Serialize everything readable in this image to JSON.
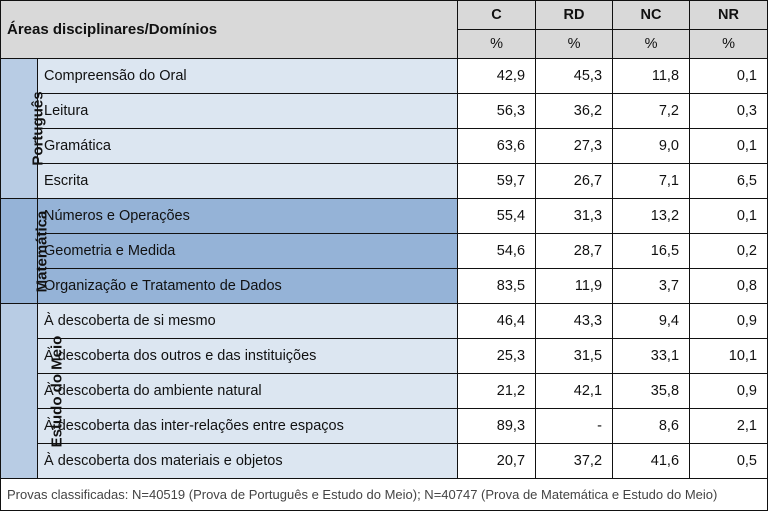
{
  "header": {
    "area_label": "Áreas disciplinares/Domínios",
    "columns": [
      "C",
      "RD",
      "NC",
      "NR"
    ],
    "unit": "%"
  },
  "groups": [
    {
      "subject": "Português",
      "rows": [
        {
          "domain": "Compreensão do Oral",
          "values": [
            "42,9",
            "45,3",
            "11,8",
            "0,1"
          ]
        },
        {
          "domain": "Leitura",
          "values": [
            "56,3",
            "36,2",
            "7,2",
            "0,3"
          ]
        },
        {
          "domain": "Gramática",
          "values": [
            "63,6",
            "27,3",
            "9,0",
            "0,1"
          ]
        },
        {
          "domain": "Escrita",
          "values": [
            "59,7",
            "26,7",
            "7,1",
            "6,5"
          ]
        }
      ]
    },
    {
      "subject": "Matemática",
      "rows": [
        {
          "domain": "Números e Operações",
          "values": [
            "55,4",
            "31,3",
            "13,2",
            "0,1"
          ]
        },
        {
          "domain": "Geometria e Medida",
          "values": [
            "54,6",
            "28,7",
            "16,5",
            "0,2"
          ]
        },
        {
          "domain": "Organização e Tratamento de Dados",
          "values": [
            "83,5",
            "11,9",
            "3,7",
            "0,8"
          ]
        }
      ]
    },
    {
      "subject": "Estudo do Meio",
      "rows": [
        {
          "domain": "À descoberta de si mesmo",
          "values": [
            "46,4",
            "43,3",
            "9,4",
            "0,9"
          ]
        },
        {
          "domain": "À descoberta dos outros e das instituições",
          "values": [
            "25,3",
            "31,5",
            "33,1",
            "10,1"
          ]
        },
        {
          "domain": "À descoberta do ambiente natural",
          "values": [
            "21,2",
            "42,1",
            "35,8",
            "0,9"
          ]
        },
        {
          "domain": "À descoberta das inter-relações entre espaços",
          "values": [
            "89,3",
            "-",
            "8,6",
            "2,1"
          ]
        },
        {
          "domain": "À descoberta dos materiais e objetos",
          "values": [
            "20,7",
            "37,2",
            "41,6",
            "0,5"
          ]
        }
      ]
    }
  ],
  "footer": "Provas classificadas: N=40519 (Prova de Português e Estudo do Meio); N=40747 (Prova de Matemática e Estudo do Meio)"
}
